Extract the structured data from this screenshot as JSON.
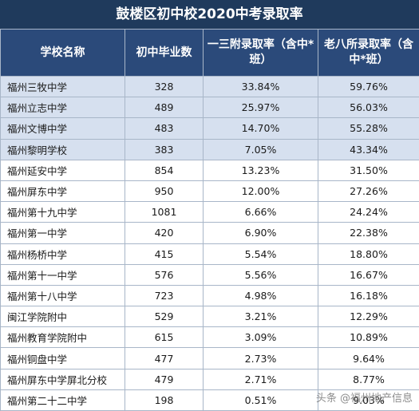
{
  "title": "鼓楼区初中校2020中考录取率",
  "headers": [
    "学校名称",
    "初中毕业数",
    "一三附录取率（含中*班）",
    "老八所录取率（含中*班）"
  ],
  "rows": [
    {
      "name": "福州三牧中学",
      "grads": "328",
      "rate13": "33.84%",
      "rate8": "59.76%",
      "highlight": true
    },
    {
      "name": "福州立志中学",
      "grads": "489",
      "rate13": "25.97%",
      "rate8": "56.03%",
      "highlight": true
    },
    {
      "name": "福州文博中学",
      "grads": "483",
      "rate13": "14.70%",
      "rate8": "55.28%",
      "highlight": true
    },
    {
      "name": "福州黎明学校",
      "grads": "383",
      "rate13": "7.05%",
      "rate8": "43.34%",
      "highlight": true
    },
    {
      "name": "福州延安中学",
      "grads": "854",
      "rate13": "13.23%",
      "rate8": "31.50%",
      "highlight": false
    },
    {
      "name": "福州屏东中学",
      "grads": "950",
      "rate13": "12.00%",
      "rate8": "27.26%",
      "highlight": false
    },
    {
      "name": "福州第十九中学",
      "grads": "1081",
      "rate13": "6.66%",
      "rate8": "24.24%",
      "highlight": false
    },
    {
      "name": "福州第一中学",
      "grads": "420",
      "rate13": "6.90%",
      "rate8": "22.38%",
      "highlight": false
    },
    {
      "name": "福州杨桥中学",
      "grads": "415",
      "rate13": "5.54%",
      "rate8": "18.80%",
      "highlight": false
    },
    {
      "name": "福州第十一中学",
      "grads": "576",
      "rate13": "5.56%",
      "rate8": "16.67%",
      "highlight": false
    },
    {
      "name": "福州第十八中学",
      "grads": "723",
      "rate13": "4.98%",
      "rate8": "16.18%",
      "highlight": false
    },
    {
      "name": "闽江学院附中",
      "grads": "529",
      "rate13": "3.21%",
      "rate8": "12.29%",
      "highlight": false
    },
    {
      "name": "福州教育学院附中",
      "grads": "615",
      "rate13": "3.09%",
      "rate8": "10.89%",
      "highlight": false
    },
    {
      "name": "福州铜盘中学",
      "grads": "477",
      "rate13": "2.73%",
      "rate8": "9.64%",
      "highlight": false
    },
    {
      "name": "福州屏东中学屏北分校",
      "grads": "479",
      "rate13": "2.71%",
      "rate8": "8.77%",
      "highlight": false
    },
    {
      "name": "福州第二十二中学",
      "grads": "198",
      "rate13": "0.51%",
      "rate8": "9.03%",
      "highlight": false
    }
  ],
  "watermark": "头条 @福州地产信息",
  "colors": {
    "title_bg": "#1f3a5c",
    "header_bg": "#2b4a7a",
    "highlight_row": "#d6e0ef",
    "border": "#a8b6c8"
  }
}
